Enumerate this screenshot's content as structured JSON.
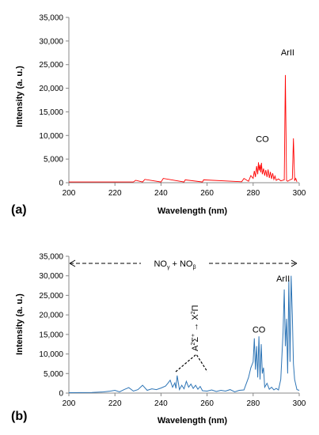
{
  "chart_data": [
    {
      "type": "line",
      "panel_label": "(a)",
      "xlabel": "Wavelength (nm)",
      "ylabel": "Intensity (a. u.)",
      "xlim": [
        200,
        300
      ],
      "ylim": [
        0,
        35000
      ],
      "xticks": [
        "200",
        "220",
        "240",
        "260",
        "280",
        "300"
      ],
      "yticks": [
        "0",
        "5,000",
        "10,000",
        "15,000",
        "20,000",
        "25,000",
        "30,000",
        "35,000"
      ],
      "grid": false,
      "color": "#ff0000",
      "series": [
        {
          "x": [
            200,
            228,
            229,
            232,
            233,
            240,
            241,
            250,
            250.5,
            258,
            258.5,
            275,
            276,
            278,
            279,
            280,
            280.5,
            281,
            281.5,
            282,
            282.3,
            282.6,
            283,
            283.3,
            283.6,
            284,
            284.5,
            285,
            285.5,
            286,
            286.5,
            287,
            287.5,
            288,
            288.5,
            289,
            289.5,
            290,
            291,
            292,
            293.5,
            294,
            294.5,
            295,
            296,
            297,
            297.5,
            298,
            298.5,
            299
          ],
          "y": [
            150,
            150,
            500,
            150,
            700,
            150,
            900,
            150,
            600,
            150,
            600,
            200,
            900,
            300,
            1500,
            900,
            2500,
            1200,
            3500,
            1800,
            4300,
            2600,
            3800,
            2200,
            4200,
            1800,
            3000,
            1500,
            2700,
            1200,
            2800,
            1000,
            2300,
            800,
            2000,
            700,
            1400,
            500,
            800,
            400,
            600,
            22800,
            500,
            300,
            600,
            800,
            9400,
            400,
            900,
            200
          ]
        }
      ],
      "annotations": [
        {
          "text": "CO",
          "x": 284,
          "y": 8600
        },
        {
          "text": "ArII",
          "x": 295,
          "y": 27000
        }
      ]
    },
    {
      "type": "line",
      "panel_label": "(b)",
      "xlabel": "Wavelength (nm)",
      "ylabel": "Intensity (a. u.)",
      "xlim": [
        200,
        300
      ],
      "ylim": [
        0,
        35000
      ],
      "xticks": [
        "200",
        "220",
        "240",
        "260",
        "280",
        "300"
      ],
      "yticks": [
        "0",
        "5,000",
        "10,000",
        "15,000",
        "20,000",
        "25,000",
        "30,000",
        "35,000"
      ],
      "grid": false,
      "color": "#2e75b6",
      "series": [
        {
          "x": [
            200,
            210,
            215,
            218,
            220,
            222,
            224,
            226,
            228,
            230,
            232,
            234,
            236,
            238,
            240,
            242,
            243,
            244,
            245,
            246,
            246.5,
            247,
            248,
            249,
            250,
            251,
            252,
            253,
            254,
            255,
            256,
            257,
            258,
            260,
            262,
            264,
            266,
            268,
            270,
            272,
            274,
            276,
            278,
            279,
            280,
            280.5,
            281,
            281.5,
            282,
            282.5,
            283,
            283.5,
            284,
            284.5,
            285,
            286,
            287,
            288,
            289,
            290,
            291,
            292,
            293,
            293.5,
            294,
            294.5,
            295,
            295.5,
            296,
            296.5,
            297,
            297.5,
            298,
            299,
            300
          ],
          "y": [
            100,
            150,
            300,
            500,
            700,
            300,
            900,
            1400,
            500,
            900,
            2000,
            700,
            1100,
            900,
            1300,
            1800,
            2500,
            3300,
            1500,
            2600,
            1200,
            4500,
            900,
            2000,
            1100,
            3000,
            1500,
            2300,
            1200,
            2000,
            1000,
            1700,
            600,
            500,
            800,
            400,
            700,
            500,
            900,
            300,
            700,
            800,
            4000,
            6500,
            8000,
            14000,
            6000,
            12000,
            4000,
            14500,
            3500,
            12500,
            5000,
            6500,
            1500,
            2500,
            1000,
            1500,
            800,
            1200,
            800,
            3500,
            15500,
            26500,
            12000,
            19000,
            5000,
            29000,
            8000,
            30000,
            20000,
            7500,
            3500,
            900,
            700
          ]
        }
      ],
      "annotations": [
        {
          "text": "CO",
          "x": 282.5,
          "y": 15500
        },
        {
          "text": "ArII",
          "x": 293,
          "y": 28500
        }
      ],
      "span_label": {
        "text": "NO",
        "sub1": "γ",
        "mid": " + NO",
        "sub2": "β"
      },
      "rot_label": {
        "t1": "A",
        "t2": "2",
        "t3": "Σ",
        "t4": "+",
        "t5": " → X",
        "t6": "2",
        "t7": "Π"
      }
    }
  ]
}
